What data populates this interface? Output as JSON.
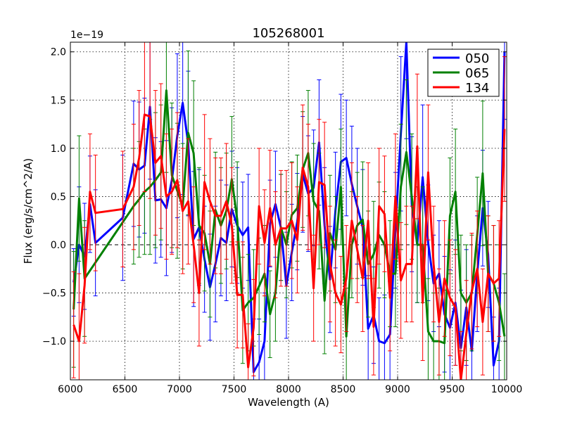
{
  "chart_data": {
    "type": "line",
    "title": "105268001",
    "xlabel": "Wavelength (A)",
    "ylabel": "Flux (erg/s/cm^2/A)",
    "offset_label": "1e−19",
    "xlim": [
      6000,
      10000
    ],
    "ylim": [
      -1.4,
      2.1
    ],
    "xticks": [
      6000,
      6500,
      7000,
      7500,
      8000,
      8500,
      9000,
      9500,
      10000
    ],
    "xtick_labels": [
      "6000",
      "6500",
      "7000",
      "7500",
      "8000",
      "8500",
      "9000",
      "9500",
      "10000"
    ],
    "yticks": [
      -1.0,
      -0.5,
      0.0,
      0.5,
      1.0,
      1.5,
      2.0
    ],
    "ytick_labels": [
      "−1.0",
      "−0.5",
      "0.0",
      "0.5",
      "1.0",
      "1.5",
      "2.0"
    ],
    "grid": true,
    "legend_position": "top-right",
    "series": [
      {
        "name": "050",
        "color": "#0000ff",
        "x": [
          6030,
          6080,
          6130,
          6180,
          6230,
          6480,
          6580,
          6630,
          6680,
          6730,
          6780,
          6830,
          6880,
          6930,
          6980,
          7030,
          7080,
          7130,
          7180,
          7230,
          7280,
          7330,
          7380,
          7430,
          7480,
          7530,
          7580,
          7630,
          7680,
          7730,
          7780,
          7830,
          7880,
          7930,
          7980,
          8030,
          8080,
          8130,
          8180,
          8230,
          8280,
          8330,
          8380,
          8430,
          8480,
          8530,
          8580,
          8630,
          8680,
          8730,
          8780,
          8830,
          8880,
          8930,
          8980,
          9030,
          9080,
          9130,
          9180,
          9230,
          9280,
          9330,
          9380,
          9430,
          9480,
          9530,
          9580,
          9630,
          9680,
          9730,
          9780,
          9830,
          9880,
          9930,
          9980
        ],
        "y": [
          -0.39,
          0.0,
          -0.12,
          0.42,
          0.02,
          0.28,
          0.84,
          0.78,
          0.82,
          1.43,
          0.46,
          0.47,
          0.38,
          0.67,
          1.13,
          1.47,
          1.05,
          0.06,
          0.18,
          -0.15,
          -0.44,
          -0.2,
          0.07,
          0.02,
          0.37,
          0.2,
          0.1,
          0.18,
          -1.32,
          -1.22,
          -1.0,
          0.22,
          0.42,
          0.18,
          -0.42,
          -0.08,
          0.24,
          0.73,
          0.53,
          0.59,
          1.06,
          0.2,
          -0.36,
          0.36,
          0.86,
          0.9,
          0.63,
          0.4,
          0.18,
          -0.87,
          -0.73,
          -1.0,
          -1.02,
          -0.93,
          0.15,
          1.15,
          2.1,
          0.42,
          0.0,
          0.7,
          0.02,
          -0.4,
          -0.3,
          -0.72,
          -0.86,
          -0.6,
          -1.07,
          -0.65,
          -1.1,
          -0.3,
          0.38,
          -0.1,
          -1.25,
          -1.0,
          2.0
        ],
        "err": [
          0.35,
          0.6,
          0.55,
          0.5,
          0.55,
          0.65,
          0.65,
          0.7,
          0.7,
          0.75,
          0.65,
          0.6,
          0.7,
          0.75,
          0.85,
          0.95,
          0.75,
          0.7,
          0.6,
          0.55,
          0.55,
          0.6,
          0.6,
          0.6,
          0.6,
          0.6,
          0.55,
          0.55,
          0.55,
          0.45,
          0.5,
          0.45,
          0.55,
          0.55,
          0.55,
          0.5,
          0.5,
          0.6,
          0.6,
          0.6,
          0.65,
          0.6,
          0.55,
          0.6,
          0.7,
          0.6,
          0.6,
          0.6,
          0.6,
          0.55,
          0.5,
          0.45,
          0.5,
          0.55,
          0.6,
          0.8,
          1.0,
          0.7,
          0.6,
          0.75,
          0.6,
          0.5,
          0.55,
          0.6,
          0.6,
          0.65,
          0.6,
          0.6,
          0.6,
          0.6,
          0.6,
          0.55,
          0.5,
          0.55,
          0.7
        ]
      },
      {
        "name": "065",
        "color": "#008000",
        "x": [
          6030,
          6080,
          6130,
          6580,
          6630,
          6680,
          6730,
          6780,
          6830,
          6880,
          6930,
          6980,
          7030,
          7080,
          7130,
          7180,
          7230,
          7280,
          7330,
          7380,
          7430,
          7480,
          7530,
          7580,
          7630,
          7680,
          7730,
          7780,
          7830,
          7880,
          7930,
          7980,
          8030,
          8080,
          8130,
          8180,
          8230,
          8280,
          8330,
          8380,
          8430,
          8480,
          8530,
          8580,
          8630,
          8680,
          8730,
          8780,
          8830,
          8880,
          8930,
          8980,
          9030,
          9080,
          9130,
          9180,
          9230,
          9280,
          9330,
          9380,
          9430,
          9480,
          9530,
          9580,
          9630,
          9680,
          9730,
          9780,
          9830,
          9880,
          9930,
          9980
        ],
        "y": [
          -0.67,
          0.48,
          -0.35,
          0.4,
          0.47,
          0.55,
          0.6,
          0.67,
          0.75,
          1.6,
          0.72,
          0.56,
          0.4,
          1.16,
          0.95,
          0.2,
          0.12,
          -0.2,
          0.36,
          0.2,
          0.35,
          0.68,
          0.26,
          -0.68,
          -0.6,
          -0.55,
          -0.43,
          -0.3,
          -0.72,
          -0.5,
          0.18,
          0.0,
          0.31,
          0.38,
          0.78,
          0.95,
          0.45,
          0.35,
          -0.58,
          0.12,
          -0.05,
          0.6,
          -0.95,
          0.0,
          0.2,
          0.26,
          -0.2,
          -0.1,
          0.1,
          0.0,
          -0.3,
          -0.3,
          0.6,
          0.96,
          0.5,
          0.0,
          0.0,
          -0.9,
          -1.0,
          -1.0,
          -1.02,
          0.3,
          0.55,
          -0.5,
          -0.6,
          -0.5,
          0.1,
          0.74,
          -0.3,
          -0.4,
          -0.6,
          -0.95
        ],
        "err": [
          0.6,
          0.65,
          0.6,
          0.6,
          0.6,
          0.65,
          0.7,
          0.7,
          0.7,
          0.85,
          0.75,
          0.7,
          0.65,
          0.85,
          0.75,
          0.6,
          0.6,
          0.55,
          0.6,
          0.6,
          0.6,
          0.65,
          0.6,
          0.55,
          0.5,
          0.5,
          0.5,
          0.5,
          0.45,
          0.5,
          0.55,
          0.55,
          0.55,
          0.55,
          0.6,
          0.65,
          0.6,
          0.6,
          0.55,
          0.6,
          0.55,
          0.6,
          0.5,
          0.55,
          0.55,
          0.6,
          0.55,
          0.55,
          0.55,
          0.55,
          0.55,
          0.55,
          0.65,
          0.75,
          0.65,
          0.6,
          0.6,
          0.55,
          0.5,
          0.55,
          0.55,
          0.6,
          0.65,
          0.6,
          0.6,
          0.6,
          0.6,
          0.75,
          0.6,
          0.6,
          0.6,
          0.65
        ]
      },
      {
        "name": "134",
        "color": "#ff0000",
        "x": [
          6030,
          6080,
          6130,
          6180,
          6230,
          6480,
          6580,
          6630,
          6680,
          6730,
          6780,
          6830,
          6880,
          6930,
          6980,
          7030,
          7080,
          7130,
          7180,
          7230,
          7280,
          7330,
          7380,
          7430,
          7480,
          7530,
          7580,
          7630,
          7680,
          7730,
          7780,
          7830,
          7880,
          7930,
          7980,
          8030,
          8080,
          8130,
          8180,
          8230,
          8280,
          8330,
          8380,
          8430,
          8480,
          8530,
          8580,
          8630,
          8680,
          8730,
          8780,
          8830,
          8880,
          8930,
          8980,
          9030,
          9080,
          9130,
          9180,
          9230,
          9280,
          9330,
          9380,
          9430,
          9480,
          9530,
          9580,
          9630,
          9680,
          9730,
          9780,
          9830,
          9880,
          9930,
          9980
        ],
        "y": [
          -0.83,
          -1.0,
          -0.42,
          0.55,
          0.33,
          0.37,
          0.6,
          0.9,
          1.35,
          1.33,
          0.85,
          0.92,
          0.5,
          0.55,
          0.67,
          0.35,
          0.45,
          0.0,
          -0.5,
          0.65,
          0.45,
          0.3,
          0.3,
          0.45,
          0.2,
          -0.52,
          -0.52,
          -1.27,
          -0.86,
          0.4,
          0.02,
          0.38,
          0.0,
          0.17,
          0.17,
          0.25,
          0.05,
          0.8,
          0.6,
          -0.45,
          0.65,
          0.62,
          -0.2,
          -0.5,
          -0.62,
          -0.35,
          0.25,
          -0.05,
          -0.35,
          0.25,
          -0.85,
          0.4,
          0.32,
          -0.55,
          0.5,
          -0.37,
          -0.2,
          -0.2,
          1.02,
          -0.6,
          0.75,
          -0.2,
          -0.8,
          -0.35,
          -0.55,
          -0.65,
          -1.4,
          -0.92,
          -0.48,
          -0.25,
          -0.8,
          -0.3,
          -0.4,
          -0.35,
          1.2
        ],
        "err": [
          0.55,
          0.7,
          0.6,
          0.6,
          0.6,
          0.6,
          0.65,
          0.7,
          0.8,
          0.85,
          0.75,
          0.75,
          0.65,
          0.65,
          0.7,
          0.65,
          0.65,
          0.6,
          0.55,
          0.7,
          0.65,
          0.6,
          0.6,
          0.6,
          0.6,
          0.55,
          0.55,
          0.45,
          0.5,
          0.6,
          0.55,
          0.6,
          0.55,
          0.6,
          0.6,
          0.6,
          0.55,
          0.65,
          0.65,
          0.55,
          0.65,
          0.65,
          0.6,
          0.55,
          0.5,
          0.55,
          0.6,
          0.55,
          0.55,
          0.6,
          0.5,
          0.6,
          0.6,
          0.55,
          0.65,
          0.6,
          0.6,
          0.6,
          0.75,
          0.6,
          0.7,
          0.6,
          0.55,
          0.6,
          0.6,
          0.6,
          0.5,
          0.55,
          0.6,
          0.6,
          0.55,
          0.6,
          0.6,
          0.6,
          0.75
        ]
      }
    ]
  }
}
